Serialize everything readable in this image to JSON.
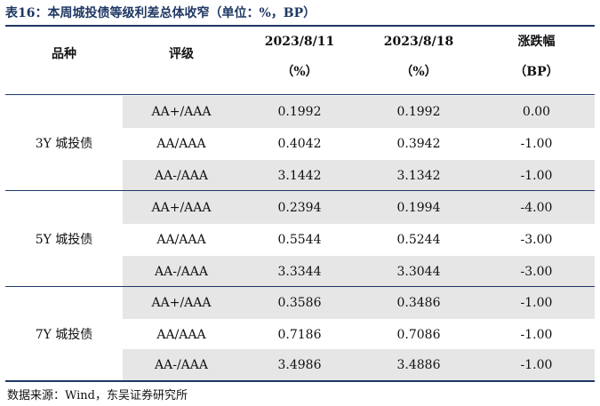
{
  "title": "表16：本周城投债等级利差总体收窄（单位：%，BP）",
  "headers": {
    "product": "品种",
    "rating": "评级",
    "date1": "2023/8/11",
    "date1_unit": "（%）",
    "date2": "2023/8/18",
    "date2_unit": "（%）",
    "change": "涨跌幅",
    "change_unit": "（BP）"
  },
  "groups": [
    {
      "label": "3Y 城投债",
      "rows": [
        {
          "rating": "AA+/AAA",
          "a": "0.1992",
          "b": "0.1992",
          "chg": "0.00"
        },
        {
          "rating": "AA/AAA",
          "a": "0.4042",
          "b": "0.3942",
          "chg": "-1.00"
        },
        {
          "rating": "AA-/AAA",
          "a": "3.1442",
          "b": "3.1342",
          "chg": "-1.00"
        }
      ]
    },
    {
      "label": "5Y 城投债",
      "rows": [
        {
          "rating": "AA+/AAA",
          "a": "0.2394",
          "b": "0.1994",
          "chg": "-4.00"
        },
        {
          "rating": "AA/AAA",
          "a": "0.5544",
          "b": "0.5244",
          "chg": "-3.00"
        },
        {
          "rating": "AA-/AAA",
          "a": "3.3344",
          "b": "3.3044",
          "chg": "-3.00"
        }
      ]
    },
    {
      "label": "7Y 城投债",
      "rows": [
        {
          "rating": "AA+/AAA",
          "a": "0.3586",
          "b": "0.3486",
          "chg": "-1.00"
        },
        {
          "rating": "AA/AAA",
          "a": "0.7186",
          "b": "0.7086",
          "chg": "-1.00"
        },
        {
          "rating": "AA-/AAA",
          "a": "3.4986",
          "b": "3.4886",
          "chg": "-1.00"
        }
      ]
    }
  ],
  "source": "数据来源：Wind，东吴证券研究所"
}
